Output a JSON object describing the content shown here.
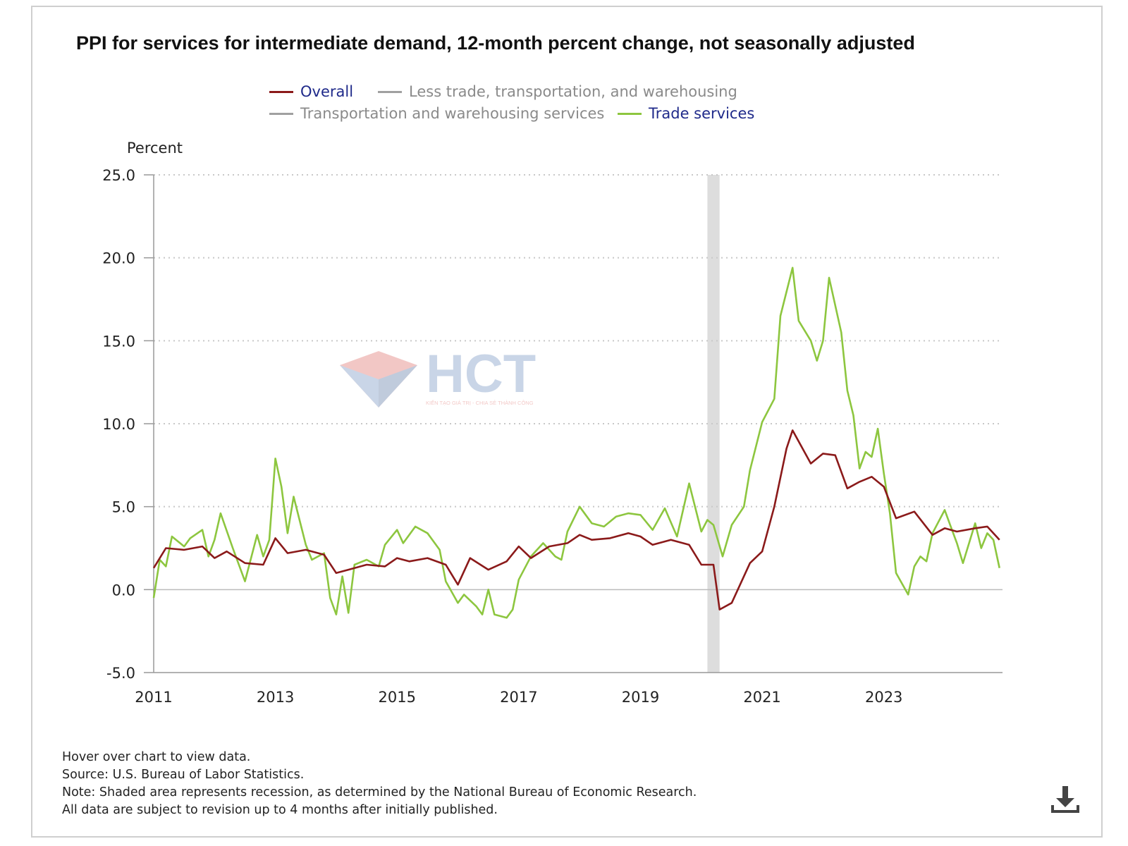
{
  "header": {
    "title": "PPI for services for intermediate demand, 12-month percent change, not seasonally adjusted"
  },
  "legend": [
    {
      "label": "Overall",
      "color": "#8b1a1a",
      "active": true
    },
    {
      "label": "Less trade, transportation, and warehousing",
      "color": "#a0a0a0",
      "active": false
    },
    {
      "label": "Transportation and warehousing services",
      "color": "#a0a0a0",
      "active": false
    },
    {
      "label": "Trade services",
      "color": "#8dc63f",
      "active": true
    }
  ],
  "watermark": {
    "brand": "HCT",
    "tagline": "KIẾN TẠO GIÁ TRỊ - CHIA SẺ THÀNH CÔNG"
  },
  "notes": {
    "hover": "Hover over chart to view data.",
    "source": "Source: U.S. Bureau of Labor Statistics.",
    "note": "Note: Shaded area represents recession, as determined by the National Bureau of Economic Research.",
    "revision": "All data are subject to revision up to 4 months after initially published."
  },
  "icons": {
    "download": "download-icon"
  },
  "chart_data": {
    "type": "line",
    "title": "PPI for services for intermediate demand, 12-month percent change, not seasonally adjusted",
    "ylabel": "Percent",
    "xlabel": "",
    "ylim": [
      -5,
      25
    ],
    "xlim": [
      2011,
      2024.9
    ],
    "yticks": [
      "-5.0",
      "0.0",
      "5.0",
      "10.0",
      "15.0",
      "20.0",
      "25.0"
    ],
    "xticks": [
      "2011",
      "2013",
      "2015",
      "2017",
      "2019",
      "2021",
      "2023"
    ],
    "grid": "horizontal dotted",
    "legend_position": "top",
    "recession": {
      "start": 2020.1,
      "end": 2020.3
    },
    "series": [
      {
        "name": "Overall",
        "color": "#8b1a1a",
        "points": [
          [
            2011.0,
            1.3
          ],
          [
            2011.2,
            2.5
          ],
          [
            2011.5,
            2.4
          ],
          [
            2011.8,
            2.6
          ],
          [
            2012.0,
            1.9
          ],
          [
            2012.2,
            2.3
          ],
          [
            2012.5,
            1.6
          ],
          [
            2012.8,
            1.5
          ],
          [
            2013.0,
            3.1
          ],
          [
            2013.2,
            2.2
          ],
          [
            2013.5,
            2.4
          ],
          [
            2013.8,
            2.1
          ],
          [
            2014.0,
            1.0
          ],
          [
            2014.2,
            1.2
          ],
          [
            2014.5,
            1.5
          ],
          [
            2014.8,
            1.4
          ],
          [
            2015.0,
            1.9
          ],
          [
            2015.2,
            1.7
          ],
          [
            2015.5,
            1.9
          ],
          [
            2015.8,
            1.5
          ],
          [
            2016.0,
            0.3
          ],
          [
            2016.2,
            1.9
          ],
          [
            2016.5,
            1.2
          ],
          [
            2016.8,
            1.7
          ],
          [
            2017.0,
            2.6
          ],
          [
            2017.2,
            1.9
          ],
          [
            2017.5,
            2.6
          ],
          [
            2017.8,
            2.8
          ],
          [
            2018.0,
            3.3
          ],
          [
            2018.2,
            3.0
          ],
          [
            2018.5,
            3.1
          ],
          [
            2018.8,
            3.4
          ],
          [
            2019.0,
            3.2
          ],
          [
            2019.2,
            2.7
          ],
          [
            2019.5,
            3.0
          ],
          [
            2019.8,
            2.7
          ],
          [
            2020.0,
            1.5
          ],
          [
            2020.2,
            1.5
          ],
          [
            2020.3,
            -1.2
          ],
          [
            2020.5,
            -0.8
          ],
          [
            2020.8,
            1.6
          ],
          [
            2021.0,
            2.3
          ],
          [
            2021.2,
            5.0
          ],
          [
            2021.4,
            8.5
          ],
          [
            2021.5,
            9.6
          ],
          [
            2021.8,
            7.6
          ],
          [
            2022.0,
            8.2
          ],
          [
            2022.2,
            8.1
          ],
          [
            2022.4,
            6.1
          ],
          [
            2022.6,
            6.5
          ],
          [
            2022.8,
            6.8
          ],
          [
            2023.0,
            6.2
          ],
          [
            2023.2,
            4.3
          ],
          [
            2023.5,
            4.7
          ],
          [
            2023.8,
            3.3
          ],
          [
            2024.0,
            3.7
          ],
          [
            2024.2,
            3.5
          ],
          [
            2024.5,
            3.7
          ],
          [
            2024.7,
            3.8
          ],
          [
            2024.9,
            3.0
          ]
        ]
      },
      {
        "name": "Trade services",
        "color": "#8dc63f",
        "points": [
          [
            2011.0,
            -0.5
          ],
          [
            2011.1,
            1.8
          ],
          [
            2011.2,
            1.4
          ],
          [
            2011.3,
            3.2
          ],
          [
            2011.5,
            2.6
          ],
          [
            2011.6,
            3.1
          ],
          [
            2011.8,
            3.6
          ],
          [
            2011.9,
            2.0
          ],
          [
            2012.0,
            3.0
          ],
          [
            2012.1,
            4.6
          ],
          [
            2012.3,
            2.5
          ],
          [
            2012.5,
            0.5
          ],
          [
            2012.7,
            3.3
          ],
          [
            2012.8,
            2.0
          ],
          [
            2012.9,
            3.0
          ],
          [
            2013.0,
            7.9
          ],
          [
            2013.1,
            6.2
          ],
          [
            2013.2,
            3.4
          ],
          [
            2013.3,
            5.6
          ],
          [
            2013.5,
            2.7
          ],
          [
            2013.6,
            1.8
          ],
          [
            2013.8,
            2.2
          ],
          [
            2013.9,
            -0.5
          ],
          [
            2014.0,
            -1.5
          ],
          [
            2014.1,
            0.8
          ],
          [
            2014.2,
            -1.4
          ],
          [
            2014.3,
            1.5
          ],
          [
            2014.5,
            1.8
          ],
          [
            2014.7,
            1.4
          ],
          [
            2014.8,
            2.7
          ],
          [
            2015.0,
            3.6
          ],
          [
            2015.1,
            2.8
          ],
          [
            2015.3,
            3.8
          ],
          [
            2015.5,
            3.4
          ],
          [
            2015.7,
            2.4
          ],
          [
            2015.8,
            0.5
          ],
          [
            2016.0,
            -0.8
          ],
          [
            2016.1,
            -0.3
          ],
          [
            2016.3,
            -1.0
          ],
          [
            2016.4,
            -1.5
          ],
          [
            2016.5,
            0.0
          ],
          [
            2016.6,
            -1.5
          ],
          [
            2016.8,
            -1.7
          ],
          [
            2016.9,
            -1.2
          ],
          [
            2017.0,
            0.6
          ],
          [
            2017.2,
            2.0
          ],
          [
            2017.4,
            2.8
          ],
          [
            2017.6,
            2.0
          ],
          [
            2017.7,
            1.8
          ],
          [
            2017.8,
            3.5
          ],
          [
            2018.0,
            5.0
          ],
          [
            2018.2,
            4.0
          ],
          [
            2018.4,
            3.8
          ],
          [
            2018.6,
            4.4
          ],
          [
            2018.8,
            4.6
          ],
          [
            2019.0,
            4.5
          ],
          [
            2019.2,
            3.6
          ],
          [
            2019.4,
            4.9
          ],
          [
            2019.6,
            3.2
          ],
          [
            2019.7,
            4.8
          ],
          [
            2019.8,
            6.4
          ],
          [
            2020.0,
            3.5
          ],
          [
            2020.1,
            4.2
          ],
          [
            2020.2,
            3.9
          ],
          [
            2020.35,
            2.0
          ],
          [
            2020.5,
            3.9
          ],
          [
            2020.7,
            5.0
          ],
          [
            2020.8,
            7.2
          ],
          [
            2021.0,
            10.1
          ],
          [
            2021.2,
            11.5
          ],
          [
            2021.3,
            16.5
          ],
          [
            2021.5,
            19.4
          ],
          [
            2021.6,
            16.2
          ],
          [
            2021.8,
            15.0
          ],
          [
            2021.9,
            13.8
          ],
          [
            2022.0,
            15.0
          ],
          [
            2022.1,
            18.8
          ],
          [
            2022.3,
            15.5
          ],
          [
            2022.4,
            12.0
          ],
          [
            2022.5,
            10.5
          ],
          [
            2022.6,
            7.3
          ],
          [
            2022.7,
            8.3
          ],
          [
            2022.8,
            8.0
          ],
          [
            2022.9,
            9.7
          ],
          [
            2023.0,
            7.0
          ],
          [
            2023.1,
            4.6
          ],
          [
            2023.2,
            1.0
          ],
          [
            2023.4,
            -0.3
          ],
          [
            2023.5,
            1.4
          ],
          [
            2023.6,
            2.0
          ],
          [
            2023.7,
            1.7
          ],
          [
            2023.8,
            3.4
          ],
          [
            2024.0,
            4.8
          ],
          [
            2024.1,
            3.8
          ],
          [
            2024.2,
            2.8
          ],
          [
            2024.3,
            1.6
          ],
          [
            2024.5,
            4.0
          ],
          [
            2024.6,
            2.5
          ],
          [
            2024.7,
            3.4
          ],
          [
            2024.8,
            3.0
          ],
          [
            2024.9,
            1.3
          ]
        ]
      }
    ]
  }
}
